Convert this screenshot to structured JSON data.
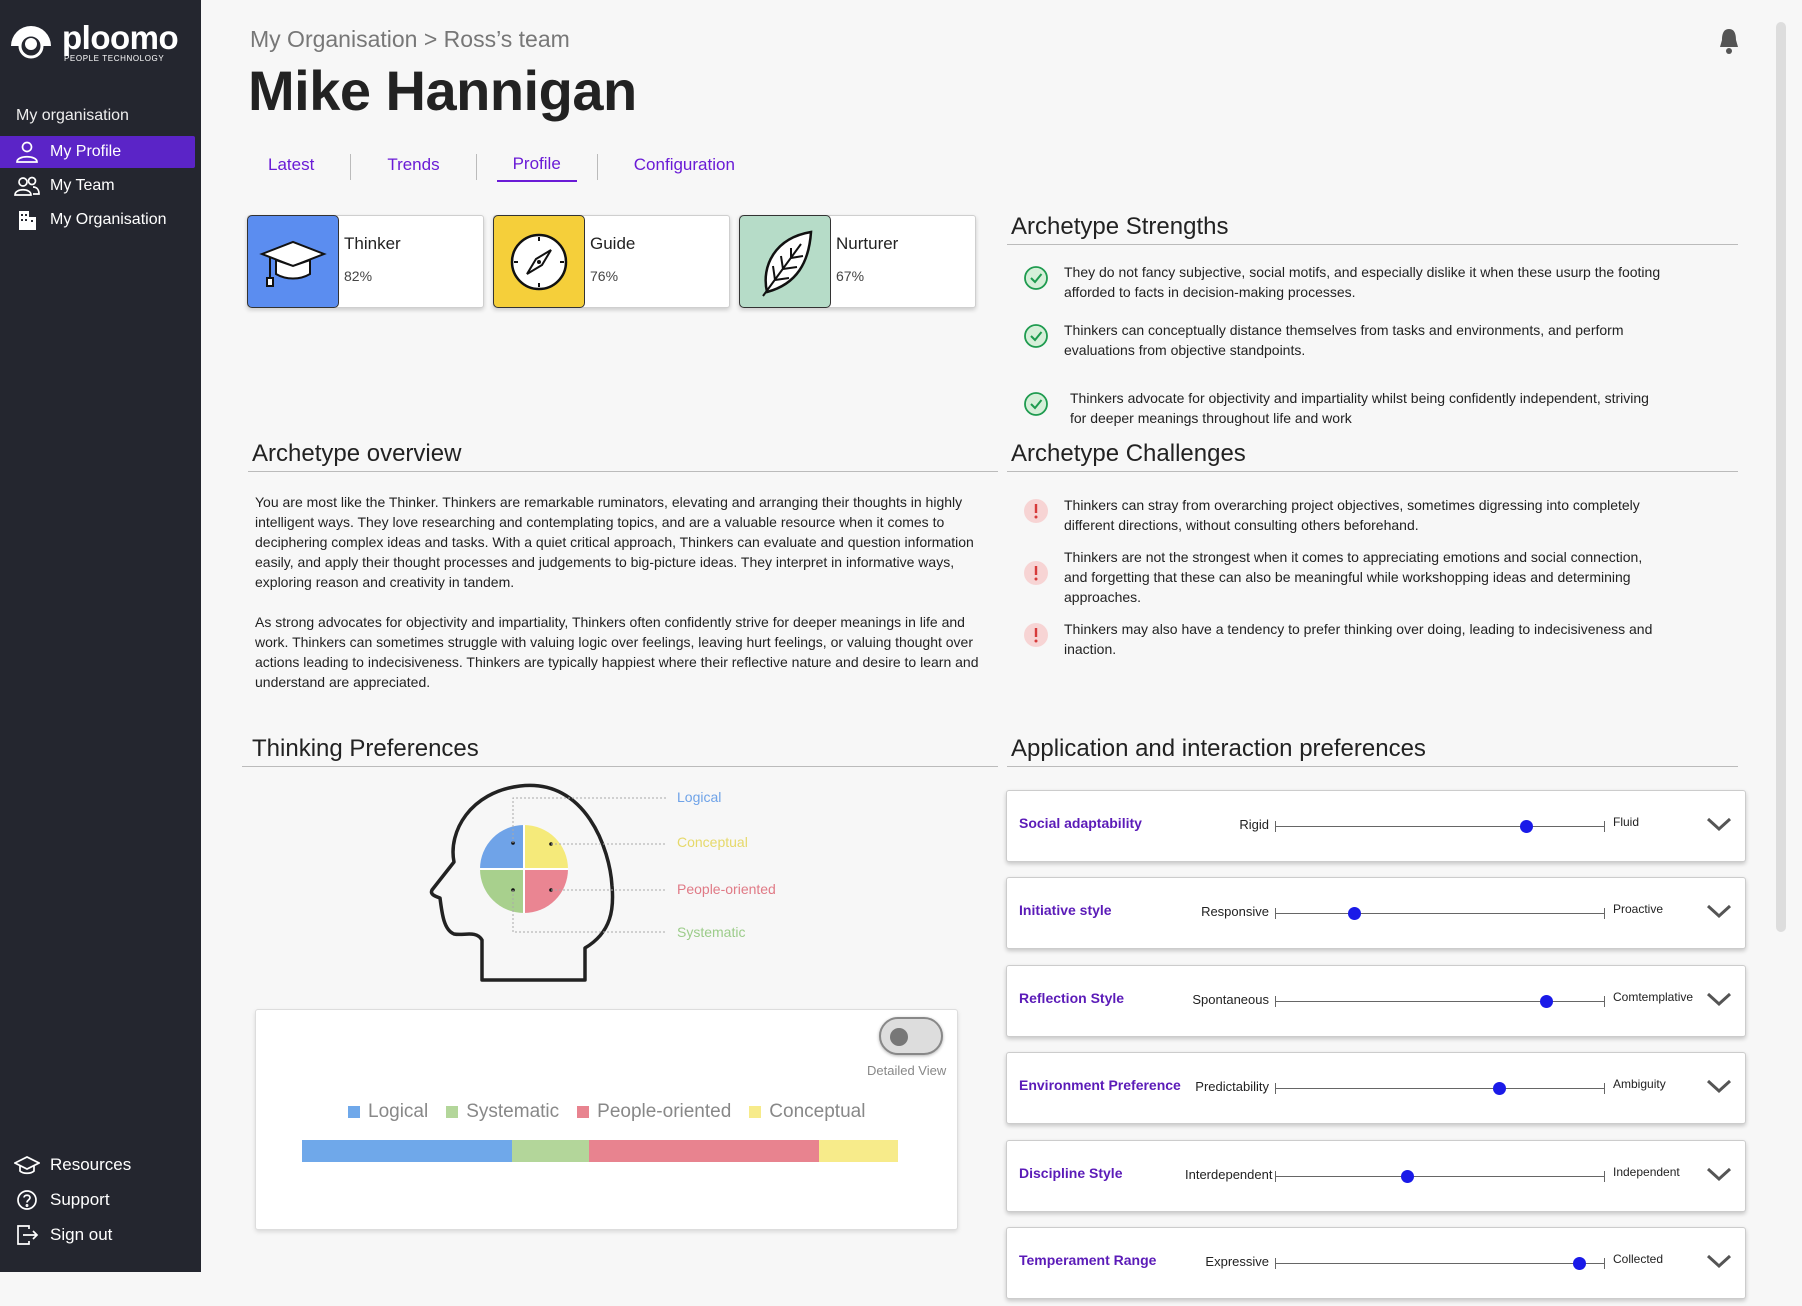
{
  "app": {
    "logo_word": "ploomo",
    "logo_sub": "PEOPLE TECHNOLOGY"
  },
  "sidebar": {
    "section_label": "My organisation",
    "items": [
      {
        "label": "My Profile",
        "icon": "user-icon",
        "active": true
      },
      {
        "label": "My Team",
        "icon": "team-icon",
        "active": false
      },
      {
        "label": "My Organisation",
        "icon": "building-icon",
        "active": false
      }
    ],
    "bottom": [
      {
        "label": "Resources",
        "icon": "graduation-cap-icon"
      },
      {
        "label": "Support",
        "icon": "help-circle-icon"
      },
      {
        "label": "Sign out",
        "icon": "sign-out-icon"
      }
    ]
  },
  "header": {
    "breadcrumb": "My Organisation > Ross’s team",
    "title": "Mike Hannigan"
  },
  "tabs": [
    {
      "label": "Latest",
      "active": false
    },
    {
      "label": "Trends",
      "active": false
    },
    {
      "label": "Profile",
      "active": true
    },
    {
      "label": "Configuration",
      "active": false
    }
  ],
  "archetypes": [
    {
      "name": "Thinker",
      "percent": "82%",
      "color": "#5b8df0",
      "icon": "graduation-cap-icon"
    },
    {
      "name": "Guide",
      "percent": "76%",
      "color": "#f5cf3a",
      "icon": "compass-icon"
    },
    {
      "name": "Nurturer",
      "percent": "67%",
      "color": "#b6dcc8",
      "icon": "leaf-icon"
    }
  ],
  "strengths": {
    "heading": "Archetype Strengths",
    "items": [
      "They do not fancy subjective, social motifs, and especially dislike it when these usurp the footing afforded to facts in decision-making processes.",
      "Thinkers can conceptually distance themselves from tasks and environments, and perform evaluations from objective standpoints.",
      "Thinkers advocate for objectivity and impartiality whilst being confidently independent, striving for deeper meanings throughout life and work"
    ]
  },
  "overview": {
    "heading": "Archetype overview",
    "paragraphs": [
      "You are most like the Thinker. Thinkers are remarkable ruminators, elevating and arranging their thoughts in highly intelligent ways. They love researching and contemplating topics, and are a valuable resource when it comes to deciphering complex ideas and tasks. With a quiet critical approach, Thinkers can evaluate and question information easily, and apply their thought processes and judgements to big-picture ideas. They interpret in informative ways, exploring reason and creativity in tandem.",
      "As strong advocates for objectivity and impartiality, Thinkers often confidently strive for deeper meanings in life and work. Thinkers can sometimes struggle with valuing logic over feelings, leaving hurt feelings, or valuing thought over actions leading to indecisiveness. Thinkers are typically happiest where their reflective nature and desire to learn and understand are appreciated."
    ]
  },
  "challenges": {
    "heading": "Archetype Challenges",
    "items": [
      "Thinkers can stray from overarching project objectives, sometimes digressing into completely different directions, without consulting others beforehand.",
      "Thinkers are not the strongest when it comes to appreciating emotions and social connection, and forgetting that these can also be meaningful while workshopping ideas and determining approaches.",
      "Thinkers may also have a tendency to prefer thinking over doing, leading to indecisiveness and inaction."
    ]
  },
  "thinking": {
    "heading": "Thinking Preferences",
    "head_labels": [
      {
        "label": "Logical",
        "color": "#6fa3e8"
      },
      {
        "label": "Conceptual",
        "color": "#efe07a"
      },
      {
        "label": "People-oriented",
        "color": "#e07a86"
      },
      {
        "label": "Systematic",
        "color": "#9ccc8a"
      }
    ],
    "toggle_label": "Detailed View",
    "legend": [
      {
        "label": "Logical",
        "color": "#6fa8ea"
      },
      {
        "label": "Systematic",
        "color": "#b3d69a"
      },
      {
        "label": "People-oriented",
        "color": "#e8838f"
      },
      {
        "label": "Conceptual",
        "color": "#f7eb8a"
      }
    ],
    "bar_fractions": [
      0.352,
      0.13,
      0.385,
      0.133
    ]
  },
  "application": {
    "heading": "Application and interaction preferences",
    "items": [
      {
        "name": "Social adaptability",
        "left": "Rigid",
        "right": "Fluid",
        "value": 0.76
      },
      {
        "name": "Initiative style",
        "left": "Responsive",
        "right": "Proactive",
        "value": 0.24
      },
      {
        "name": "Reflection Style",
        "left": "Spontaneous",
        "right": "Comtemplative",
        "value": 0.82
      },
      {
        "name": "Environment Preference",
        "left": "Predictability",
        "right": "Ambiguity",
        "value": 0.68
      },
      {
        "name": "Discipline Style",
        "left": "Interdependent",
        "right": "Independent",
        "value": 0.4
      },
      {
        "name": "Temperament Range",
        "left": "Expressive",
        "right": "Collected",
        "value": 0.92
      }
    ]
  }
}
